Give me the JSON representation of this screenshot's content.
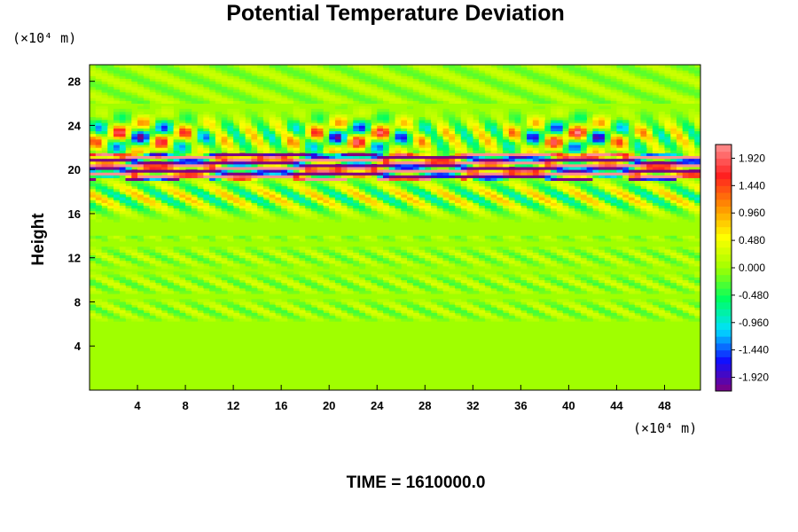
{
  "chart_data": {
    "type": "heatmap",
    "title": "Potential Temperature Deviation",
    "xunit": "(×10⁴ m)",
    "yunit": "(×10⁴ m)",
    "ylabel": "Height",
    "xlim": [
      0,
      51
    ],
    "ylim": [
      0,
      29.5
    ],
    "x_ticks": [
      "4",
      "8",
      "12",
      "16",
      "20",
      "24",
      "28",
      "32",
      "36",
      "40",
      "44",
      "48"
    ],
    "y_ticks": [
      "4",
      "8",
      "12",
      "16",
      "20",
      "24",
      "28"
    ],
    "colorbar": {
      "range": [
        -2.16,
        2.16
      ],
      "step": 0.12,
      "labels": [
        "1.920",
        "1.440",
        "0.960",
        "0.480",
        "0.000",
        "-0.480",
        "-0.960",
        "-1.440",
        "-1.920"
      ],
      "colormap": [
        "#800080",
        "#1010ff",
        "#00e0ff",
        "#00ff60",
        "#a0ff00",
        "#ffff00",
        "#ff9000",
        "#ff2020",
        "#ff9090"
      ]
    },
    "field_description": {
      "background_value": 0.0,
      "strong_band_y": [
        19.5,
        21.5
      ],
      "wave_region_y": [
        16,
        26
      ]
    },
    "footer": "TIME = 1610000.0"
  }
}
